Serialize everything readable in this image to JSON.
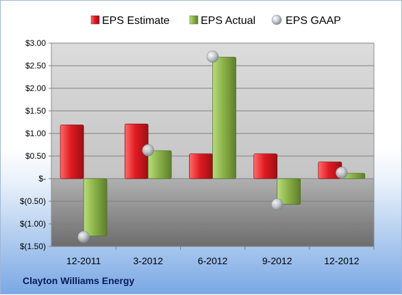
{
  "company": "Clayton Williams Energy",
  "colors": {
    "estimate": "#c8161d",
    "actual": "#8cb34a",
    "gaap": "#c0c6cc",
    "plot_bg": "#bfbfbf"
  },
  "chart_data": {
    "type": "bar",
    "categories": [
      "12-2011",
      "3-2012",
      "6-2012",
      "9-2012",
      "12-2012"
    ],
    "series": [
      {
        "name": "EPS Estimate",
        "type": "bar",
        "values": [
          1.19,
          1.21,
          0.55,
          0.55,
          0.37
        ]
      },
      {
        "name": "EPS Actual",
        "type": "bar",
        "values": [
          -1.27,
          0.62,
          2.69,
          -0.57,
          0.12
        ]
      },
      {
        "name": "EPS GAAP",
        "type": "scatter",
        "values": [
          -1.29,
          0.63,
          2.7,
          -0.57,
          0.13
        ]
      }
    ],
    "y_ticks": [
      "$(1.50)",
      "$(1.00)",
      "$(0.50)",
      "$-",
      "$0.50",
      "$1.00",
      "$1.50",
      "$2.00",
      "$2.50",
      "$3.00"
    ],
    "ylim": [
      -1.5,
      3.0
    ],
    "legend": "top",
    "grid": true
  }
}
